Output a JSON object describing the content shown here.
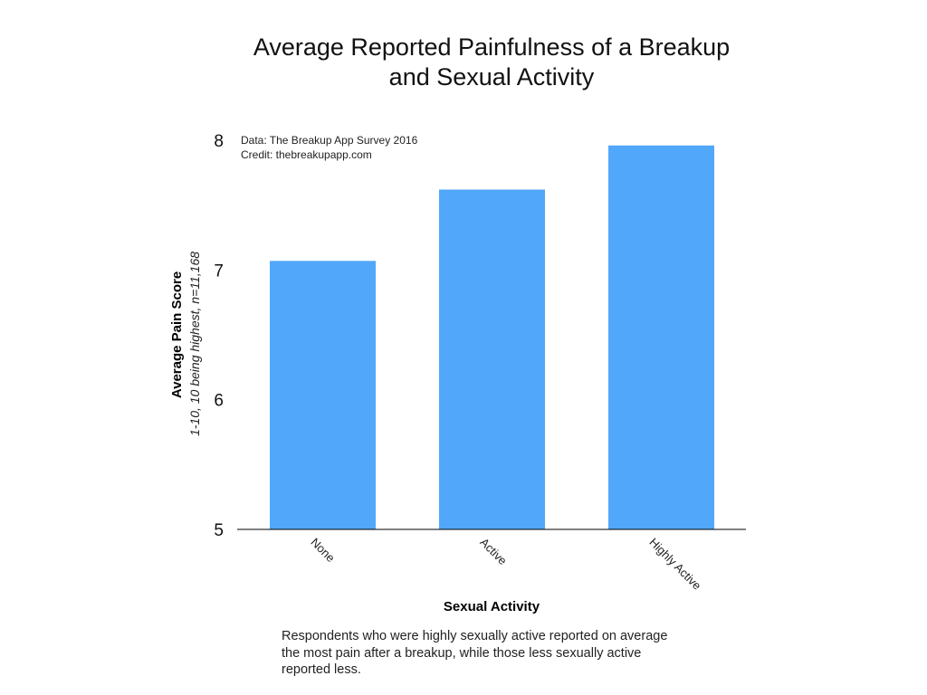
{
  "chart_data": {
    "type": "bar",
    "title": [
      "Average Reported Painfulness of a Breakup",
      "and Sexual Activity"
    ],
    "xlabel": "Sexual Activity",
    "ylabel": "Average Pain Score",
    "ylabel_sub": "1-10, 10 being highest, n=11,168",
    "categories": [
      "None",
      "Active",
      "Highly Active"
    ],
    "values": [
      7.07,
      7.62,
      7.96
    ],
    "ylim": [
      5,
      8
    ],
    "yticks": [
      "5",
      "6",
      "7",
      "8"
    ],
    "grid": false,
    "bar_color": "#51a7f9",
    "annotation": [
      "Data: The Breakup App Survey 2016",
      "Credit: thebreakupapp.com"
    ]
  },
  "caption": [
    "Respondents who were highly sexually active reported on average",
    "the most pain after a breakup, while those less sexually active",
    "reported less."
  ]
}
